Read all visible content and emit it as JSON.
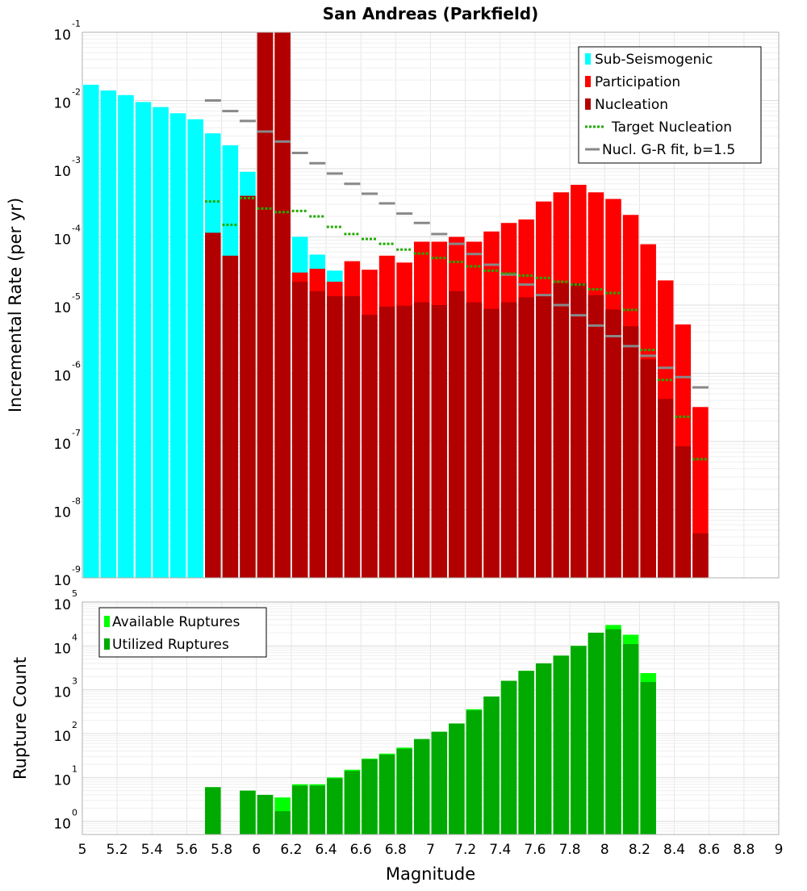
{
  "chart_data": [
    {
      "type": "bar",
      "title": "San Andreas (Parkfield)",
      "xlabel": "",
      "ylabel": "Incremental Rate (per yr)",
      "scale_y": "log",
      "xlim": [
        5,
        9
      ],
      "ylim": [
        1e-09,
        0.1
      ],
      "grid": true,
      "legend_position": "top-right",
      "legend": [
        "Sub-Seismogenic",
        "Participation",
        "Nucleation",
        "Target Nucleation",
        "Nucl. G-R fit, b=1.5"
      ],
      "colors": {
        "Sub-Seismogenic": "#00ffff",
        "Participation": "#ff0000",
        "Nucleation": "#b20000",
        "Target Nucleation": "#22aa00",
        "Nucl. G-R fit, b=1.5": "#888888"
      },
      "y_tick_labels": [
        {
          "base": "10",
          "exp": "-9"
        },
        {
          "base": "10",
          "exp": "-8"
        },
        {
          "base": "10",
          "exp": "-7"
        },
        {
          "base": "10",
          "exp": "-6"
        },
        {
          "base": "10",
          "exp": "-5"
        },
        {
          "base": "10",
          "exp": "-4"
        },
        {
          "base": "10",
          "exp": "-3"
        },
        {
          "base": "10",
          "exp": "-2"
        },
        {
          "base": "10",
          "exp": "-1"
        }
      ],
      "series": [
        {
          "name": "Sub-Seismogenic",
          "x": [
            5.05,
            5.15,
            5.25,
            5.35,
            5.45,
            5.55,
            5.65,
            5.75,
            5.85,
            5.95,
            6.25,
            6.35,
            6.45
          ],
          "values": [
            0.017,
            0.014,
            0.012,
            0.0095,
            0.008,
            0.0065,
            0.0053,
            0.0033,
            0.0022,
            0.0009,
            0.0001,
            5.5e-05,
            3.2e-05
          ]
        },
        {
          "name": "Participation",
          "x": [
            6.05,
            6.15,
            6.25,
            6.35,
            6.45,
            6.55,
            6.65,
            6.75,
            6.85,
            6.95,
            7.05,
            7.15,
            7.25,
            7.35,
            7.45,
            7.55,
            7.65,
            7.75,
            7.85,
            7.95,
            8.05,
            8.15,
            8.25,
            8.35,
            8.45,
            8.55
          ],
          "values": [
            0.22,
            0.115,
            3e-05,
            3.4e-05,
            2.2e-05,
            4.4e-05,
            3.3e-05,
            5.3e-05,
            4.2e-05,
            8.5e-05,
            8.5e-05,
            0.0001,
            8.5e-05,
            0.00012,
            0.00016,
            0.00018,
            0.00033,
            0.00045,
            0.00058,
            0.00045,
            0.00036,
            0.00021,
            7.8e-05,
            2.3e-05,
            5.2e-06,
            3.2e-07
          ]
        },
        {
          "name": "Nucleation",
          "x": [
            5.75,
            5.85,
            5.95,
            6.05,
            6.15,
            6.25,
            6.35,
            6.45,
            6.55,
            6.65,
            6.75,
            6.85,
            6.95,
            7.05,
            7.15,
            7.25,
            7.35,
            7.45,
            7.55,
            7.65,
            7.75,
            7.85,
            7.95,
            8.05,
            8.15,
            8.25,
            8.35,
            8.45,
            8.55
          ],
          "values": [
            0.000115,
            5.3e-05,
            0.0004,
            0.22,
            0.115,
            2.2e-05,
            1.6e-05,
            1.35e-05,
            1.35e-05,
            7.2e-06,
            9.5e-06,
            9.8e-06,
            1.1e-05,
            1e-05,
            1.6e-05,
            1.1e-05,
            8.8e-06,
            1.1e-05,
            1.3e-05,
            1.4e-05,
            2.1e-05,
            2.1e-05,
            1.4e-05,
            8.6e-06,
            4.9e-06,
            1.6e-06,
            4.2e-07,
            8.5e-08,
            4.5e-09
          ]
        },
        {
          "name": "Target Nucleation",
          "x": [
            5.75,
            5.85,
            5.95,
            6.05,
            6.15,
            6.25,
            6.35,
            6.45,
            6.55,
            6.65,
            6.75,
            6.85,
            6.95,
            7.05,
            7.15,
            7.25,
            7.35,
            7.45,
            7.55,
            7.65,
            7.75,
            7.85,
            7.95,
            8.05,
            8.15,
            8.25,
            8.35,
            8.45,
            8.55
          ],
          "values": [
            0.00033,
            0.00015,
            0.00037,
            0.00026,
            0.00023,
            0.00024,
            0.0002,
            0.00014,
            0.00011,
            9.3e-05,
            7.9e-05,
            6.5e-05,
            5.7e-05,
            4.9e-05,
            4.3e-05,
            3.7e-05,
            3.2e-05,
            2.9e-05,
            2.7e-05,
            2.5e-05,
            2.2e-05,
            2e-05,
            1.7e-05,
            1.5e-05,
            8.5e-06,
            2.2e-06,
            8e-07,
            2.3e-07,
            5.5e-08
          ]
        },
        {
          "name": "Nucl. G-R fit, b=1.5",
          "x": [
            5.75,
            5.85,
            5.95,
            6.05,
            6.15,
            6.25,
            6.35,
            6.45,
            6.55,
            6.65,
            6.75,
            6.85,
            6.95,
            7.05,
            7.15,
            7.25,
            7.35,
            7.45,
            7.55,
            7.65,
            7.75,
            7.85,
            7.95,
            8.05,
            8.15,
            8.25,
            8.35,
            8.45,
            8.55
          ],
          "values": [
            0.01,
            0.007,
            0.005,
            0.0035,
            0.0025,
            0.0017,
            0.0012,
            0.00085,
            0.0006,
            0.00043,
            0.00031,
            0.00022,
            0.00016,
            0.00011,
            7.9e-05,
            5.6e-05,
            3.9e-05,
            2.8e-05,
            2e-05,
            1.4e-05,
            1e-05,
            7.1e-06,
            5e-06,
            3.5e-06,
            2.5e-06,
            1.8e-06,
            1.2e-06,
            8.8e-07,
            6.2e-07
          ]
        }
      ]
    },
    {
      "type": "bar",
      "title": "",
      "xlabel": "Magnitude",
      "ylabel": "Rupture Count",
      "scale_y": "log",
      "xlim": [
        5,
        9
      ],
      "ylim": [
        0.5,
        100000
      ],
      "grid": true,
      "legend_position": "top-left",
      "legend": [
        "Available Ruptures",
        "Utilized Ruptures"
      ],
      "colors": {
        "Available Ruptures": "#00ff00",
        "Utilized Ruptures": "#00aa00"
      },
      "x_tick_labels": [
        "5",
        "5.2",
        "5.4",
        "5.6",
        "5.8",
        "6",
        "6.2",
        "6.4",
        "6.6",
        "6.8",
        "7",
        "7.2",
        "7.4",
        "7.6",
        "7.8",
        "8",
        "8.2",
        "8.4",
        "8.6",
        "8.8",
        "9"
      ],
      "y_tick_labels": [
        {
          "base": "10",
          "exp": "0"
        },
        {
          "base": "10",
          "exp": "1"
        },
        {
          "base": "10",
          "exp": "2"
        },
        {
          "base": "10",
          "exp": "3"
        },
        {
          "base": "10",
          "exp": "4"
        },
        {
          "base": "10",
          "exp": "5"
        }
      ],
      "series": [
        {
          "name": "Available Ruptures",
          "x": [
            5.75,
            5.95,
            6.05,
            6.15,
            6.25,
            6.35,
            6.45,
            6.55,
            6.65,
            6.75,
            6.85,
            6.95,
            7.05,
            7.15,
            7.25,
            7.35,
            7.45,
            7.55,
            7.65,
            7.75,
            7.85,
            7.95,
            8.05,
            8.15,
            8.25
          ],
          "values": [
            6,
            5,
            4,
            3.5,
            7,
            7,
            10,
            15,
            27,
            35,
            48,
            75,
            110,
            170,
            360,
            700,
            1600,
            2700,
            4000,
            6000,
            10000,
            20000,
            30000,
            18000,
            2400
          ]
        },
        {
          "name": "Utilized Ruptures",
          "x": [
            5.75,
            5.95,
            6.05,
            6.15,
            6.25,
            6.35,
            6.45,
            6.55,
            6.65,
            6.75,
            6.85,
            6.95,
            7.05,
            7.15,
            7.25,
            7.35,
            7.45,
            7.55,
            7.65,
            7.75,
            7.85,
            7.95,
            8.05,
            8.15,
            8.25
          ],
          "values": [
            6,
            5,
            4,
            1.7,
            6.5,
            6.5,
            9.5,
            14,
            26,
            33,
            45,
            75,
            110,
            170,
            340,
            700,
            1600,
            2700,
            4000,
            6000,
            10000,
            20000,
            24000,
            11000,
            1500
          ]
        }
      ]
    }
  ]
}
